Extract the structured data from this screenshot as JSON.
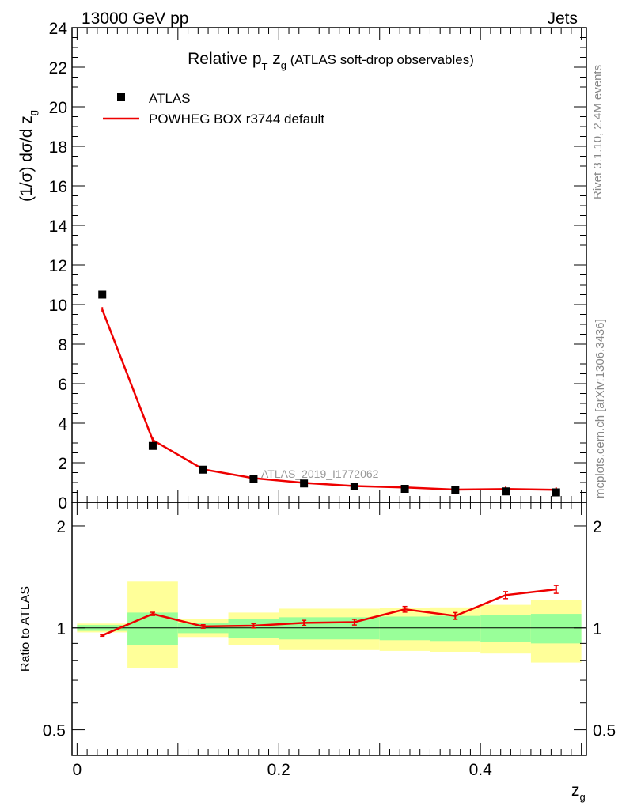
{
  "header": {
    "energy_label": "13000 GeV pp",
    "process_label": "Jets",
    "side_rivet": "Rivet 3.1.10,  2.4M events",
    "side_mcplots": "mcplots.cern.ch [arXiv:1306.3436]",
    "watermark": "ATLAS_2019_I1772062"
  },
  "chart_data": [
    {
      "type": "scatter",
      "panel": "main",
      "title_main": "Relative p",
      "title_sub_T": "T",
      "title_z": " z",
      "title_sub_g": "g",
      "title_rest": " (ATLAS soft-drop observables)",
      "ylabel_prefix": "(1/σ) dσ/d z",
      "ylabel_sub": "g",
      "ylim": [
        0,
        24
      ],
      "xlim": [
        -0.005,
        0.505
      ],
      "yticks": [
        "0",
        "2",
        "4",
        "6",
        "8",
        "10",
        "12",
        "14",
        "16",
        "18",
        "20",
        "22",
        "24"
      ],
      "legend_position": "top-left",
      "x": [
        0.025,
        0.075,
        0.125,
        0.175,
        0.225,
        0.275,
        0.325,
        0.375,
        0.425,
        0.475
      ],
      "series": [
        {
          "name": "ATLAS",
          "style": "markers",
          "color": "#000000",
          "values": [
            10.5,
            2.85,
            1.65,
            1.2,
            0.95,
            0.8,
            0.68,
            0.6,
            0.55,
            0.5
          ]
        },
        {
          "name": "POWHEG BOX r3744 default",
          "style": "line",
          "color": "#ee0000",
          "values": [
            9.75,
            3.15,
            1.67,
            1.22,
            0.98,
            0.82,
            0.75,
            0.64,
            0.67,
            0.63
          ]
        }
      ]
    },
    {
      "type": "line",
      "panel": "ratio",
      "ylabel": "Ratio to ATLAS",
      "xlabel": "z",
      "xlabel_sub": "g",
      "ylim": [
        0.42,
        2.35
      ],
      "xlim": [
        -0.005,
        0.505
      ],
      "scale": "log",
      "yticks": [
        {
          "value": 0.5,
          "label": "0.5"
        },
        {
          "value": 1.0,
          "label": "1"
        },
        {
          "value": 2.0,
          "label": "2"
        }
      ],
      "xticks": [
        {
          "value": 0.0,
          "label": "0"
        },
        {
          "value": 0.2,
          "label": "0.2"
        },
        {
          "value": 0.4,
          "label": "0.4"
        }
      ],
      "bins": [
        [
          0.0,
          0.05
        ],
        [
          0.05,
          0.1
        ],
        [
          0.1,
          0.15
        ],
        [
          0.15,
          0.2
        ],
        [
          0.2,
          0.25
        ],
        [
          0.25,
          0.3
        ],
        [
          0.3,
          0.35
        ],
        [
          0.35,
          0.4
        ],
        [
          0.4,
          0.45
        ],
        [
          0.45,
          0.5
        ]
      ],
      "band_yellow": [
        [
          0.97,
          1.03
        ],
        [
          0.76,
          1.37
        ],
        [
          0.94,
          1.06
        ],
        [
          0.89,
          1.11
        ],
        [
          0.86,
          1.14
        ],
        [
          0.86,
          1.14
        ],
        [
          0.855,
          1.145
        ],
        [
          0.85,
          1.15
        ],
        [
          0.84,
          1.17
        ],
        [
          0.79,
          1.21
        ]
      ],
      "band_green": [
        [
          0.98,
          1.02
        ],
        [
          0.89,
          1.11
        ],
        [
          0.965,
          1.035
        ],
        [
          0.935,
          1.065
        ],
        [
          0.925,
          1.075
        ],
        [
          0.925,
          1.075
        ],
        [
          0.92,
          1.08
        ],
        [
          0.915,
          1.085
        ],
        [
          0.91,
          1.09
        ],
        [
          0.9,
          1.1
        ]
      ],
      "series": [
        {
          "name": "POWHEG BOX r3744 default / ATLAS",
          "color": "#ee0000",
          "x": [
            0.025,
            0.075,
            0.125,
            0.175,
            0.225,
            0.275,
            0.325,
            0.375,
            0.425,
            0.475
          ],
          "values": [
            0.95,
            1.1,
            1.01,
            1.015,
            1.035,
            1.04,
            1.135,
            1.085,
            1.25,
            1.3
          ],
          "errors": [
            0.005,
            0.012,
            0.012,
            0.015,
            0.018,
            0.02,
            0.022,
            0.025,
            0.03,
            0.035
          ]
        }
      ]
    }
  ]
}
